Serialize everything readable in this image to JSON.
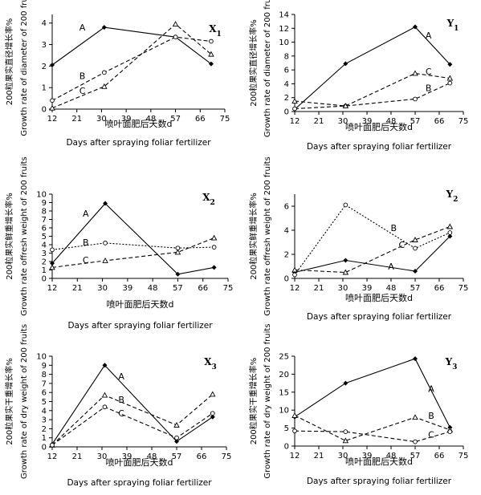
{
  "chart_data": [
    {
      "type": "line",
      "panel_label": "X1",
      "ylabel_cn": "200粒果实直径增长率%",
      "ylabel_en": "Growth rate of diameter of 200 fruits",
      "xlabel_cn": "喷叶面肥后天数d",
      "xlabel_en": "Days after spraying foliar fertilizer",
      "x_ticks": [
        12,
        21,
        30,
        39,
        48,
        57,
        66,
        75
      ],
      "y_ticks": [
        0,
        1,
        2,
        3,
        4
      ],
      "xlim": [
        12,
        75
      ],
      "ylim": [
        0,
        4.4
      ],
      "series": [
        {
          "name": "A",
          "style": "solid",
          "marker": "diamond",
          "x": [
            12,
            31,
            57,
            70
          ],
          "y": [
            2.05,
            3.8,
            3.35,
            2.1
          ],
          "label_at": [
            23,
            3.8
          ]
        },
        {
          "name": "B",
          "style": "dashed",
          "marker": "circle",
          "x": [
            12,
            31,
            57,
            70
          ],
          "y": [
            0.4,
            1.7,
            3.35,
            3.15
          ],
          "label_at": [
            23,
            1.55
          ]
        },
        {
          "name": "C",
          "style": "dashed",
          "marker": "triangle",
          "x": [
            12,
            31,
            57,
            70
          ],
          "y": [
            0.05,
            1.05,
            3.95,
            2.55
          ],
          "label_at": [
            23,
            0.85
          ]
        }
      ]
    },
    {
      "type": "line",
      "panel_label": "Y1",
      "ylabel_cn": "200粒果实直径增长率%",
      "ylabel_en": "Growth rate of diameter of 200 fruits",
      "xlabel_cn": "喷叶面肥后天数d",
      "xlabel_en": "Days after spraying foliar fertilizer",
      "x_ticks": [
        12,
        21,
        30,
        39,
        48,
        57,
        66,
        75
      ],
      "y_ticks": [
        0,
        2,
        4,
        6,
        8,
        10,
        12,
        14
      ],
      "xlim": [
        12,
        75
      ],
      "ylim": [
        0,
        14
      ],
      "series": [
        {
          "name": "A",
          "style": "solid",
          "marker": "diamond",
          "x": [
            12,
            31,
            57,
            70
          ],
          "y": [
            0.3,
            6.9,
            12.2,
            6.8
          ],
          "label_at": [
            62,
            11
          ]
        },
        {
          "name": "B",
          "style": "dashed",
          "marker": "circle",
          "x": [
            12,
            31,
            57,
            70
          ],
          "y": [
            0.4,
            0.8,
            1.8,
            4.1
          ],
          "label_at": [
            62,
            3.4
          ]
        },
        {
          "name": "C",
          "style": "dashed",
          "marker": "triangle",
          "x": [
            12,
            31,
            57,
            70
          ],
          "y": [
            1.5,
            0.8,
            5.5,
            4.8
          ],
          "label_at": [
            62,
            5.8
          ]
        }
      ]
    },
    {
      "type": "line",
      "panel_label": "X2",
      "ylabel_cn": "200粒果实鲜重增长率%",
      "ylabel_en": "Growth rate offresh weight of 200 fruits",
      "xlabel_cn": "喷叶面肥后天数d",
      "xlabel_en": "Days after spraying foliar fertilizer",
      "x_ticks": [
        12,
        21,
        30,
        39,
        48,
        57,
        66,
        75
      ],
      "y_ticks": [
        0,
        1,
        2,
        3,
        4,
        5,
        6,
        7,
        8,
        9,
        10
      ],
      "xlim": [
        12,
        75
      ],
      "ylim": [
        0,
        10
      ],
      "series": [
        {
          "name": "A",
          "style": "solid",
          "marker": "diamond",
          "x": [
            12,
            31,
            57,
            70
          ],
          "y": [
            1.8,
            8.9,
            0.5,
            1.3
          ],
          "label_at": [
            24,
            7.7
          ]
        },
        {
          "name": "B",
          "style": "dotted",
          "marker": "circle",
          "x": [
            12,
            31,
            57,
            70
          ],
          "y": [
            3.4,
            4.2,
            3.6,
            3.7
          ],
          "label_at": [
            24,
            4.3
          ]
        },
        {
          "name": "C",
          "style": "dashed",
          "marker": "triangle",
          "x": [
            12,
            31,
            57,
            70
          ],
          "y": [
            1.3,
            2.1,
            3.1,
            4.8
          ],
          "label_at": [
            24,
            2.2
          ]
        }
      ]
    },
    {
      "type": "line",
      "panel_label": "Y2",
      "ylabel_cn": "200粒果实鲜重增长率%",
      "ylabel_en": "Growth rate offresh weight of 200 fruits",
      "xlabel_cn": "喷叶面肥后天数d",
      "xlabel_en": "Days after spraying foliar fertilizer",
      "x_ticks": [
        12,
        21,
        30,
        39,
        48,
        57,
        66,
        75
      ],
      "y_ticks": [
        0,
        2,
        4,
        6
      ],
      "xlim": [
        12,
        75
      ],
      "ylim": [
        0,
        7
      ],
      "series": [
        {
          "name": "A",
          "style": "solid",
          "marker": "diamond",
          "x": [
            12,
            31,
            57,
            70
          ],
          "y": [
            0.5,
            1.5,
            0.6,
            3.5
          ],
          "label_at": [
            48,
            1.0
          ]
        },
        {
          "name": "B",
          "style": "dotted",
          "marker": "circle",
          "x": [
            12,
            31,
            57,
            70
          ],
          "y": [
            0.3,
            6.1,
            2.5,
            3.8
          ],
          "label_at": [
            49,
            4.2
          ]
        },
        {
          "name": "C",
          "style": "dashed",
          "marker": "triangle",
          "x": [
            12,
            31,
            57,
            70
          ],
          "y": [
            0.7,
            0.5,
            3.2,
            4.3
          ],
          "label_at": [
            52,
            2.8
          ]
        }
      ]
    },
    {
      "type": "line",
      "panel_label": "X3",
      "ylabel_cn": "200粒果实干重增长率%",
      "ylabel_en": "Growth rate of dry weight of 200 fruits",
      "xlabel_cn": "喷叶面肥后天数d",
      "xlabel_en": "Days after spraying foliar fertilizer",
      "x_ticks": [
        12,
        21,
        30,
        39,
        48,
        57,
        66,
        75
      ],
      "y_ticks": [
        0,
        1,
        2,
        3,
        4,
        5,
        6,
        7,
        8,
        9,
        10
      ],
      "xlim": [
        12,
        75
      ],
      "ylim": [
        0,
        10
      ],
      "series": [
        {
          "name": "A",
          "style": "solid",
          "marker": "diamond",
          "x": [
            12,
            31,
            57,
            70
          ],
          "y": [
            0.3,
            9.0,
            0.6,
            3.3
          ],
          "label_at": [
            37,
            7.8
          ]
        },
        {
          "name": "B",
          "style": "dashed",
          "marker": "triangle",
          "x": [
            12,
            31,
            57,
            70
          ],
          "y": [
            0.2,
            5.7,
            2.4,
            5.8
          ],
          "label_at": [
            37,
            5.2
          ]
        },
        {
          "name": "C",
          "style": "dashed",
          "marker": "circle",
          "x": [
            12,
            31,
            57,
            70
          ],
          "y": [
            0.2,
            4.4,
            1.0,
            3.7
          ],
          "label_at": [
            37,
            3.7
          ]
        }
      ]
    },
    {
      "type": "line",
      "panel_label": "Y3",
      "ylabel_cn": "200粒果实干重增长率%",
      "ylabel_en": "Growth rate of dry weight of 200 fruits",
      "xlabel_cn": "喷叶面肥后天数d",
      "xlabel_en": "Days after spraying foliar fertilizer",
      "x_ticks": [
        12,
        21,
        30,
        39,
        48,
        57,
        66,
        75
      ],
      "y_ticks": [
        0,
        5,
        10,
        15,
        20,
        25
      ],
      "xlim": [
        12,
        75
      ],
      "ylim": [
        0,
        25
      ],
      "series": [
        {
          "name": "A",
          "style": "solid",
          "marker": "diamond",
          "x": [
            12,
            31,
            57,
            70
          ],
          "y": [
            8.1,
            17.5,
            24.3,
            5.2
          ],
          "label_at": [
            63,
            16
          ]
        },
        {
          "name": "B",
          "style": "dashed",
          "marker": "triangle",
          "x": [
            12,
            31,
            57,
            70
          ],
          "y": [
            8.5,
            1.5,
            8.0,
            4.5
          ],
          "label_at": [
            63,
            8.5
          ]
        },
        {
          "name": "C",
          "style": "dashed",
          "marker": "circle",
          "x": [
            12,
            31,
            57,
            70
          ],
          "y": [
            4.2,
            4.0,
            1.2,
            4.0
          ],
          "label_at": [
            63,
            3.2
          ]
        }
      ]
    }
  ]
}
